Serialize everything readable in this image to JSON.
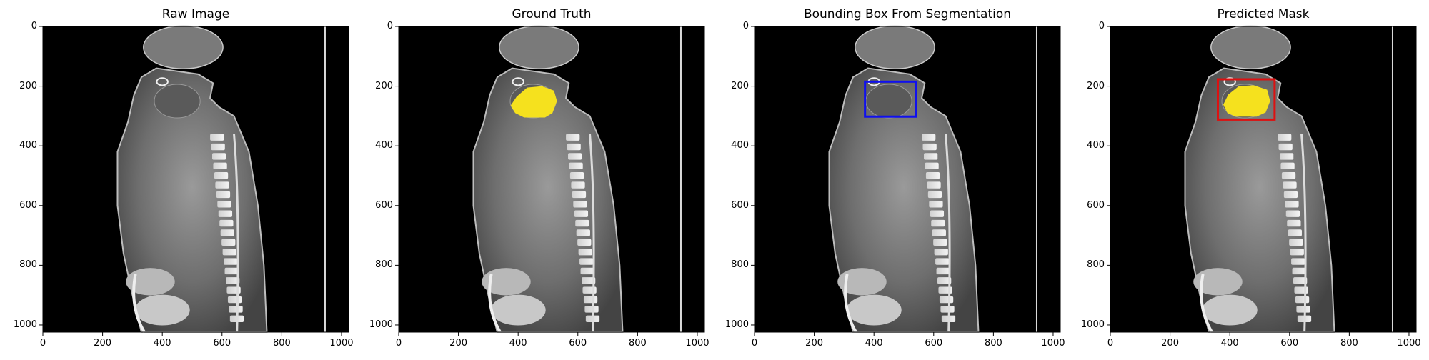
{
  "panels": [
    {
      "title": "Raw Image",
      "overlay": "none"
    },
    {
      "title": "Ground Truth",
      "overlay": "mask"
    },
    {
      "title": "Bounding Box From Segmentation",
      "overlay": "box"
    },
    {
      "title": "Predicted Mask",
      "overlay": "mask+box"
    }
  ],
  "axes": {
    "x_ticks": [
      "0",
      "200",
      "400",
      "600",
      "800",
      "1000"
    ],
    "y_ticks": [
      "0",
      "200",
      "400",
      "600",
      "800",
      "1000"
    ],
    "x_range": [
      0,
      1024
    ],
    "y_range": [
      0,
      1024
    ]
  },
  "overlays": {
    "ground_truth_mask": {
      "color": "#f5e11e",
      "polygon": [
        [
          395,
          235
        ],
        [
          430,
          205
        ],
        [
          480,
          200
        ],
        [
          520,
          215
        ],
        [
          530,
          250
        ],
        [
          515,
          290
        ],
        [
          490,
          305
        ],
        [
          420,
          305
        ],
        [
          390,
          290
        ],
        [
          375,
          265
        ]
      ]
    },
    "predicted_mask": {
      "color": "#f5e11e",
      "polygon": [
        [
          395,
          228
        ],
        [
          430,
          200
        ],
        [
          480,
          197
        ],
        [
          525,
          212
        ],
        [
          535,
          250
        ],
        [
          520,
          288
        ],
        [
          490,
          302
        ],
        [
          420,
          302
        ],
        [
          392,
          290
        ],
        [
          378,
          262
        ]
      ]
    },
    "segmentation_box": {
      "color": "#1010ee",
      "x0": 370,
      "y0": 185,
      "x1": 540,
      "y1": 302
    },
    "predicted_box": {
      "color": "#dd1111",
      "x0": 360,
      "y0": 177,
      "x1": 550,
      "y1": 312
    }
  }
}
